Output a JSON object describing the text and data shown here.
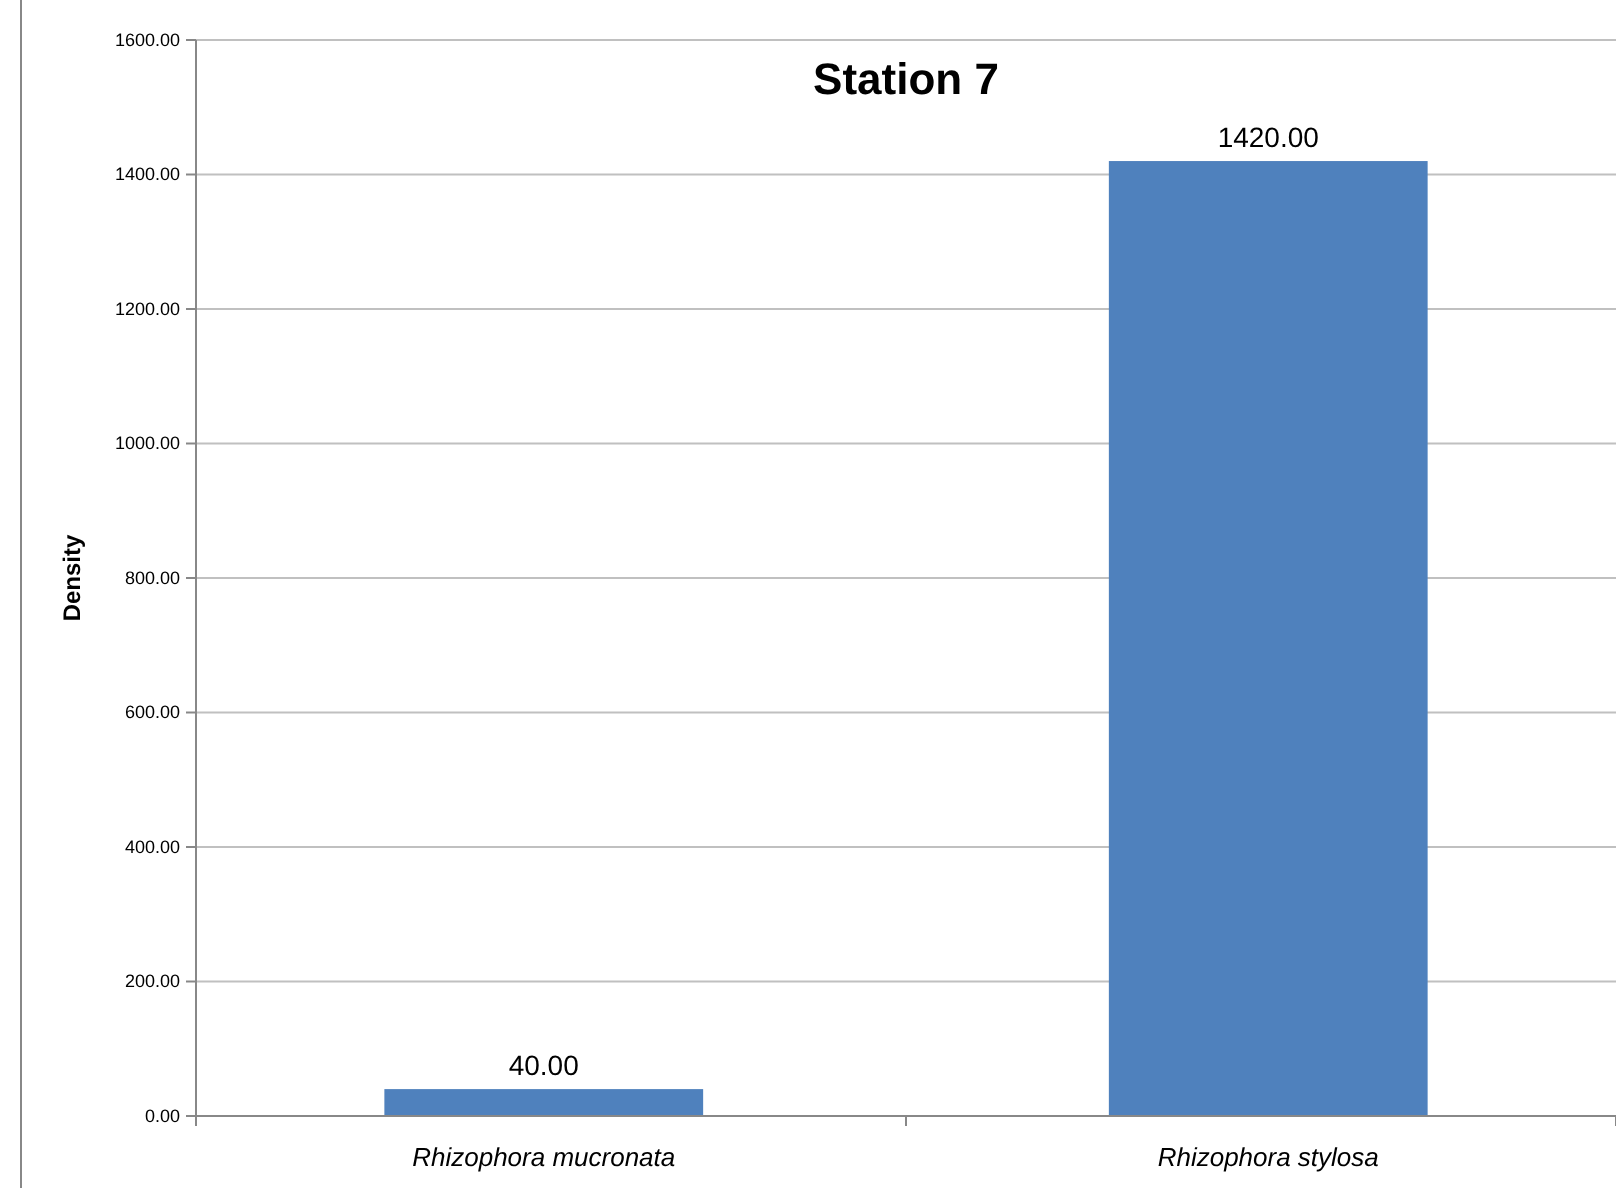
{
  "chart_data": {
    "type": "bar",
    "title": "Station 7",
    "ylabel": "Density",
    "categories": [
      "Rhizophora mucronata",
      "Rhizophora stylosa"
    ],
    "values": [
      40,
      1420
    ],
    "color": "#4f81bd",
    "value_labels": [
      "40.00",
      "1420.00"
    ],
    "ylim": [
      0,
      1600
    ],
    "yticks": [
      {
        "value": 0,
        "label": "0.00"
      },
      {
        "value": 200,
        "label": "200.00"
      },
      {
        "value": 400,
        "label": "400.00"
      },
      {
        "value": 600,
        "label": "600.00"
      },
      {
        "value": 800,
        "label": "800.00"
      },
      {
        "value": 1000,
        "label": "1000.00"
      },
      {
        "value": 1200,
        "label": "1200.00"
      },
      {
        "value": 1400,
        "label": "1400.00"
      },
      {
        "value": 1600,
        "label": "1600.00"
      }
    ],
    "grid": "y"
  }
}
